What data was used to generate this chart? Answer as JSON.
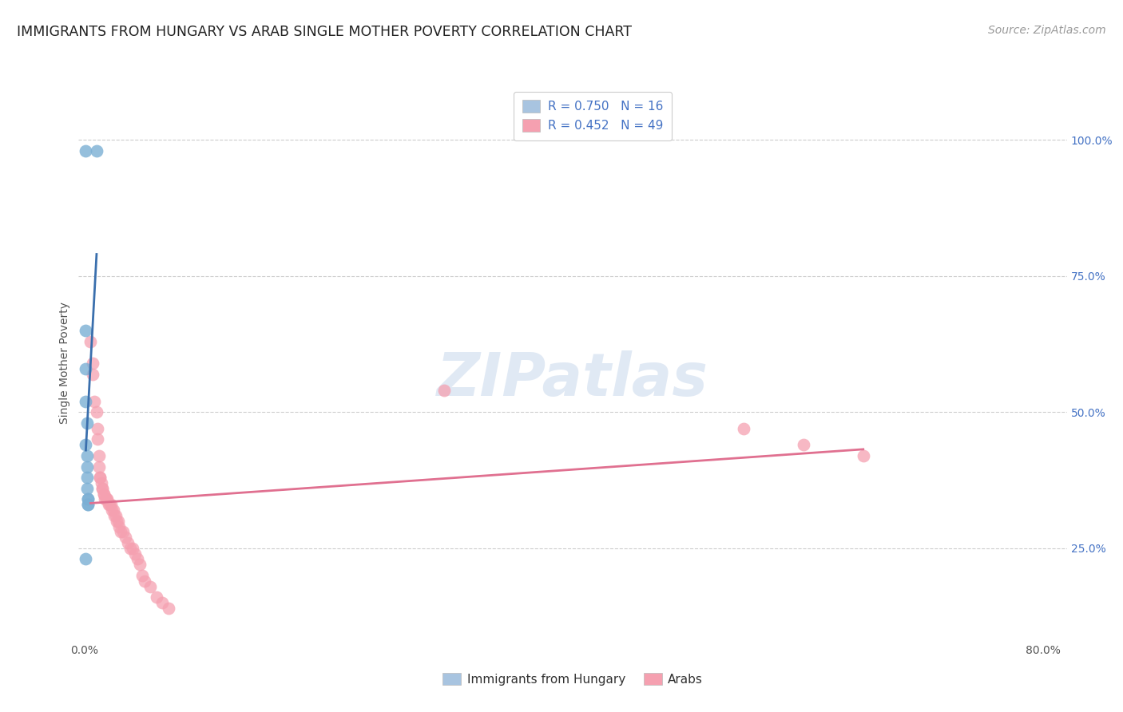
{
  "title": "IMMIGRANTS FROM HUNGARY VS ARAB SINGLE MOTHER POVERTY CORRELATION CHART",
  "source": "Source: ZipAtlas.com",
  "ylabel_label": "Single Mother Poverty",
  "watermark": "ZIPatlas",
  "legend_entries": [
    {
      "label": "R = 0.750   N = 16",
      "color": "#a8c4e0"
    },
    {
      "label": "R = 0.452   N = 49",
      "color": "#f5a0b0"
    }
  ],
  "bottom_legend": [
    "Immigrants from Hungary",
    "Arabs"
  ],
  "hungary_color": "#7bafd4",
  "arab_color": "#f5a0b0",
  "hungary_line_color": "#3a6fad",
  "arab_line_color": "#e07090",
  "background_color": "#ffffff",
  "grid_color": "#cccccc",
  "x_ticks": [
    0.0,
    0.2,
    0.4,
    0.6,
    0.8
  ],
  "x_labels": [
    "0.0%",
    "",
    "",
    "",
    "80.0%"
  ],
  "y_ticks": [
    0.25,
    0.5,
    0.75,
    1.0
  ],
  "y_labels": [
    "25.0%",
    "50.0%",
    "75.0%",
    "100.0%"
  ],
  "xlim": [
    -0.005,
    0.82
  ],
  "ylim": [
    0.08,
    1.1
  ],
  "hungary_points": [
    [
      0.001,
      0.98
    ],
    [
      0.01,
      0.98
    ],
    [
      0.001,
      0.65
    ],
    [
      0.001,
      0.58
    ],
    [
      0.001,
      0.52
    ],
    [
      0.002,
      0.48
    ],
    [
      0.001,
      0.44
    ],
    [
      0.002,
      0.42
    ],
    [
      0.002,
      0.4
    ],
    [
      0.002,
      0.38
    ],
    [
      0.002,
      0.36
    ],
    [
      0.003,
      0.34
    ],
    [
      0.003,
      0.34
    ],
    [
      0.003,
      0.33
    ],
    [
      0.003,
      0.33
    ],
    [
      0.001,
      0.23
    ]
  ],
  "arab_points": [
    [
      0.005,
      0.63
    ],
    [
      0.007,
      0.59
    ],
    [
      0.007,
      0.57
    ],
    [
      0.008,
      0.52
    ],
    [
      0.01,
      0.5
    ],
    [
      0.011,
      0.47
    ],
    [
      0.011,
      0.45
    ],
    [
      0.012,
      0.42
    ],
    [
      0.012,
      0.4
    ],
    [
      0.013,
      0.38
    ],
    [
      0.013,
      0.38
    ],
    [
      0.014,
      0.37
    ],
    [
      0.015,
      0.36
    ],
    [
      0.015,
      0.36
    ],
    [
      0.016,
      0.35
    ],
    [
      0.016,
      0.35
    ],
    [
      0.017,
      0.34
    ],
    [
      0.018,
      0.34
    ],
    [
      0.018,
      0.34
    ],
    [
      0.019,
      0.34
    ],
    [
      0.02,
      0.33
    ],
    [
      0.021,
      0.33
    ],
    [
      0.022,
      0.33
    ],
    [
      0.023,
      0.32
    ],
    [
      0.024,
      0.32
    ],
    [
      0.025,
      0.31
    ],
    [
      0.026,
      0.31
    ],
    [
      0.027,
      0.3
    ],
    [
      0.028,
      0.3
    ],
    [
      0.029,
      0.29
    ],
    [
      0.03,
      0.28
    ],
    [
      0.032,
      0.28
    ],
    [
      0.034,
      0.27
    ],
    [
      0.036,
      0.26
    ],
    [
      0.038,
      0.25
    ],
    [
      0.04,
      0.25
    ],
    [
      0.042,
      0.24
    ],
    [
      0.044,
      0.23
    ],
    [
      0.046,
      0.22
    ],
    [
      0.048,
      0.2
    ],
    [
      0.05,
      0.19
    ],
    [
      0.055,
      0.18
    ],
    [
      0.06,
      0.16
    ],
    [
      0.065,
      0.15
    ],
    [
      0.07,
      0.14
    ],
    [
      0.3,
      0.54
    ],
    [
      0.55,
      0.47
    ],
    [
      0.6,
      0.44
    ],
    [
      0.65,
      0.42
    ]
  ],
  "title_fontsize": 12.5,
  "axis_label_fontsize": 10,
  "tick_fontsize": 10,
  "legend_fontsize": 11,
  "source_fontsize": 10
}
